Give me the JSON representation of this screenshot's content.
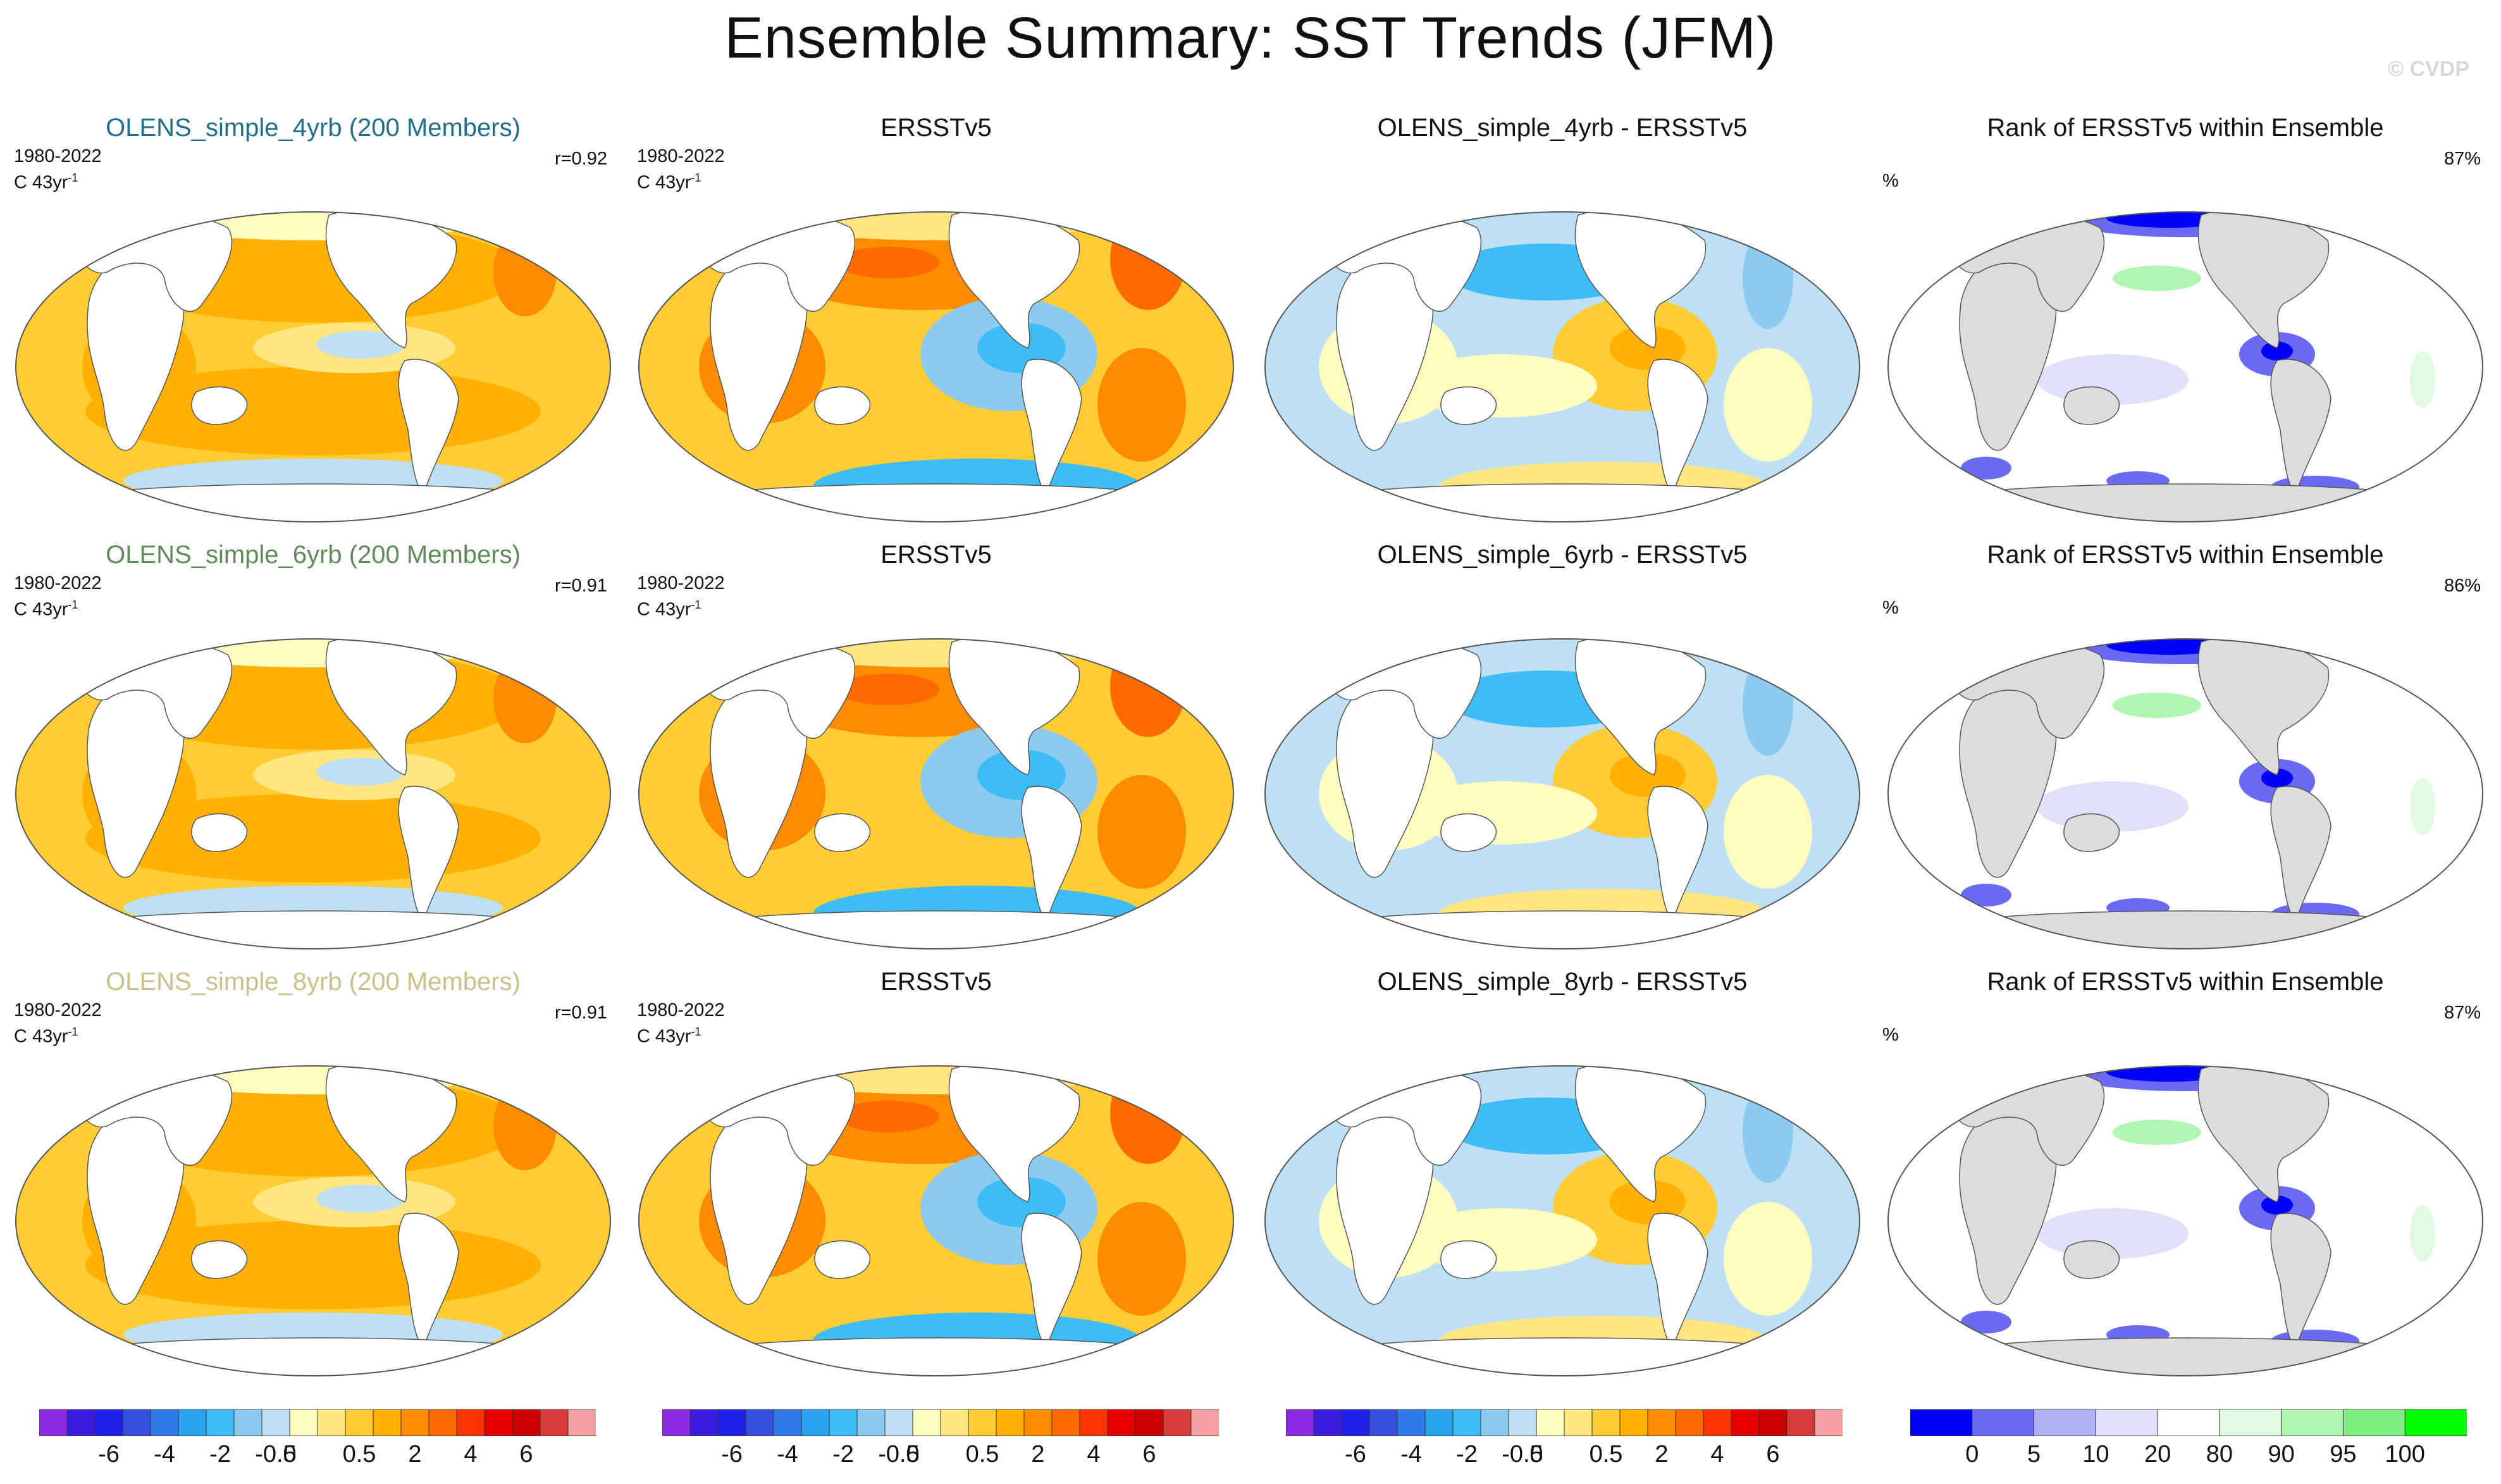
{
  "title": "Ensemble Summary: SST Trends (JFM)",
  "watermark": "© CVDP",
  "rows": [
    {
      "model": {
        "title": "OLENS_simple_4yrb (200 Members)",
        "title_color": "#1f6f8b",
        "period": "1980-2022",
        "units_base": "C 43yr",
        "units_exp": "-1",
        "r": "r=0.92"
      },
      "obs": {
        "title": "ERSSTv5",
        "period": "1980-2022",
        "units_base": "C 43yr",
        "units_exp": "-1"
      },
      "diff": {
        "title": "OLENS_simple_4yrb - ERSSTv5"
      },
      "rank": {
        "title": "Rank of ERSSTv5 within Ensemble",
        "unit": "%",
        "value": "87%"
      }
    },
    {
      "model": {
        "title": "OLENS_simple_6yrb (200 Members)",
        "title_color": "#5f8a5a",
        "period": "1980-2022",
        "units_base": "C 43yr",
        "units_exp": "-1",
        "r": "r=0.91"
      },
      "obs": {
        "title": "ERSSTv5",
        "period": "1980-2022",
        "units_base": "C 43yr",
        "units_exp": "-1"
      },
      "diff": {
        "title": "OLENS_simple_6yrb - ERSSTv5"
      },
      "rank": {
        "title": "Rank of ERSSTv5 within Ensemble",
        "unit": "%",
        "value": "86%"
      }
    },
    {
      "model": {
        "title": "OLENS_simple_8yrb (200 Members)",
        "title_color": "#c9c08a",
        "period": "1980-2022",
        "units_base": "C 43yr",
        "units_exp": "-1",
        "r": "r=0.91"
      },
      "obs": {
        "title": "ERSSTv5",
        "period": "1980-2022",
        "units_base": "C 43yr",
        "units_exp": "-1"
      },
      "diff": {
        "title": "OLENS_simple_8yrb - ERSSTv5"
      },
      "rank": {
        "title": "Rank of ERSSTv5 within Ensemble",
        "unit": "%",
        "value": "87%"
      }
    }
  ],
  "trend_colorbar": {
    "colors": [
      "#8a2be2",
      "#3a1de0",
      "#2020e8",
      "#3550e0",
      "#2f7ae8",
      "#2aa3f0",
      "#3dbdf5",
      "#8ccbef",
      "#bde0f5",
      "#fffcc0",
      "#ffe680",
      "#ffcc33",
      "#ffb000",
      "#ff8c00",
      "#ff6a00",
      "#ff3300",
      "#e60000",
      "#cc0000",
      "#d93b3b",
      "#f5a0a0"
    ],
    "labels": [
      "-6",
      "-4",
      "-2",
      "-0.5",
      "0",
      "0.5",
      "2",
      "4",
      "6"
    ]
  },
  "rank_colorbar": {
    "colors": [
      "#0000ff",
      "#6a6af5",
      "#b0b0f5",
      "#e0e0fa",
      "#ffffff",
      "#e0fae0",
      "#b0f5b0",
      "#80ee80",
      "#00ff00"
    ],
    "labels": [
      "0",
      "5",
      "10",
      "20",
      "80",
      "90",
      "95",
      "100"
    ]
  },
  "colors": {
    "land_trend": "#ffffff",
    "land_rank": "#dcdcdc",
    "outline": "#555555"
  }
}
